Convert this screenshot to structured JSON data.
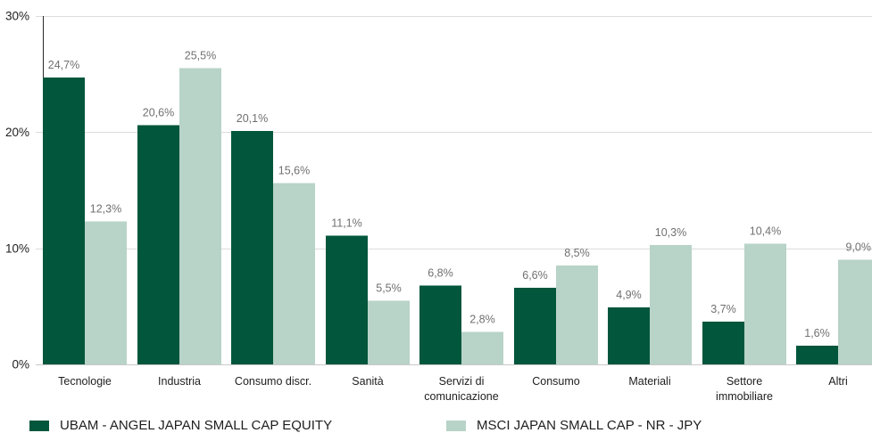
{
  "chart_data": {
    "type": "bar",
    "categories": [
      "Tecnologie",
      "Industria",
      "Consumo discr.",
      "Sanità",
      "Servizi di comunicazione",
      "Consumo",
      "Materiali",
      "Settore immobiliare",
      "Altri"
    ],
    "series": [
      {
        "name": "UBAM - ANGEL JAPAN SMALL CAP EQUITY",
        "color": "#01563C",
        "values": [
          24.7,
          20.6,
          20.1,
          11.1,
          6.8,
          6.6,
          4.9,
          3.7,
          1.6
        ],
        "data_labels": [
          "24,7%",
          "20,6%",
          "20,1%",
          "11,1%",
          "6,8%",
          "6,6%",
          "4,9%",
          "3,7%",
          "1,6%"
        ]
      },
      {
        "name": "MSCI JAPAN SMALL CAP - NR - JPY",
        "color": "#B8D3C7",
        "values": [
          12.3,
          25.5,
          15.6,
          5.5,
          2.8,
          8.5,
          10.3,
          10.4,
          9.0
        ],
        "data_labels": [
          "12,3%",
          "25,5%",
          "15,6%",
          "5,5%",
          "2,8%",
          "8,5%",
          "10,3%",
          "10,4%",
          "9,0%"
        ]
      }
    ],
    "ylim": [
      0,
      30
    ],
    "yticks": [
      0,
      10,
      20,
      30
    ],
    "ytick_labels": [
      "0%",
      "10%",
      "20%",
      "30%"
    ],
    "grid": true,
    "legend_position": "bottom"
  }
}
